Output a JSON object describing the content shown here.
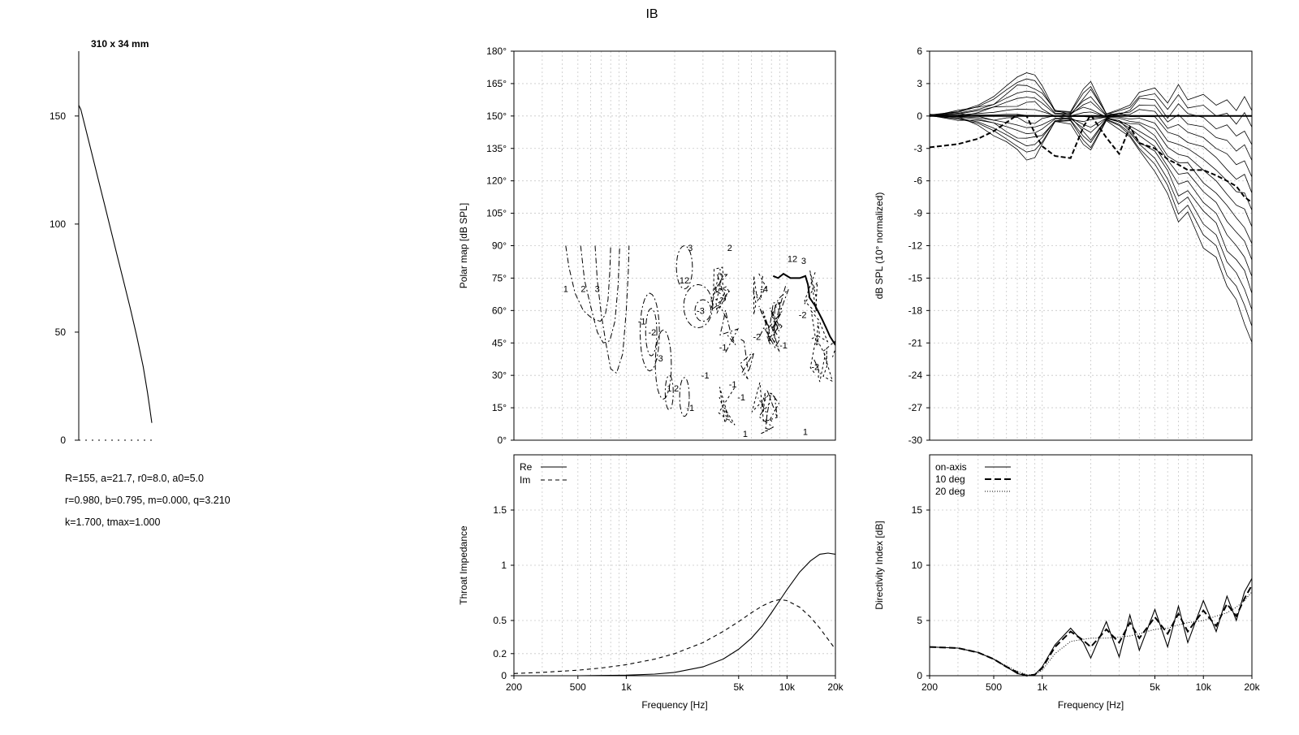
{
  "title": "IB",
  "profile": {
    "label": "310 x 34 mm",
    "yticks": [
      "0",
      "50",
      "100",
      "150"
    ],
    "params": [
      "R=155, a=21.7, r0=8.0, a0=5.0",
      "r=0.980, b=0.795, m=0.000, q=3.210",
      "k=1.700, tmax=1.000"
    ]
  },
  "chart_data": [
    {
      "type": "line",
      "id": "profile",
      "title": "310 x 34 mm",
      "ylim": [
        0,
        180
      ],
      "xlim": [
        0,
        34
      ],
      "series": [
        {
          "name": "profile",
          "x": [
            0,
            1,
            3,
            6,
            9,
            12,
            15,
            18,
            21,
            24,
            27,
            30,
            32,
            33,
            34
          ],
          "y": [
            155,
            153,
            145,
            133,
            121,
            109,
            97,
            85,
            73,
            61,
            48,
            34,
            22,
            15,
            8
          ]
        }
      ]
    },
    {
      "type": "contour",
      "id": "polar-map",
      "ylabel": "Polar map [dB SPL]",
      "ylim": [
        0,
        180
      ],
      "yticks": [
        "0°",
        "15°",
        "30°",
        "45°",
        "60°",
        "75°",
        "90°",
        "105°",
        "120°",
        "135°",
        "150°",
        "165°",
        "180°"
      ],
      "xticks": [
        "200",
        "500",
        "1k",
        "5k",
        "10k",
        "20k"
      ],
      "contour_labels": [
        {
          "text": "1",
          "f": 420,
          "deg": 70
        },
        {
          "text": "2",
          "f": 540,
          "deg": 70
        },
        {
          "text": "3",
          "f": 660,
          "deg": 70
        },
        {
          "text": "3",
          "f": 2500,
          "deg": 89
        },
        {
          "text": "12",
          "f": 2300,
          "deg": 74
        },
        {
          "text": "2",
          "f": 4400,
          "deg": 89
        },
        {
          "text": "-2",
          "f": 1450,
          "deg": 50
        },
        {
          "text": "-1",
          "f": 1250,
          "deg": 55
        },
        {
          "text": "-3",
          "f": 1600,
          "deg": 38
        },
        {
          "text": "-3",
          "f": 2900,
          "deg": 60
        },
        {
          "text": "-4",
          "f": 7200,
          "deg": 70
        },
        {
          "text": "-2",
          "f": 6500,
          "deg": 48
        },
        {
          "text": "-1",
          "f": 4000,
          "deg": 43
        },
        {
          "text": "-1",
          "f": 3100,
          "deg": 30
        },
        {
          "text": "-1",
          "f": 4600,
          "deg": 26
        },
        {
          "text": "-1",
          "f": 5200,
          "deg": 20
        },
        {
          "text": "-1",
          "f": 2500,
          "deg": 15
        },
        {
          "text": "1",
          "f": 1850,
          "deg": 24
        },
        {
          "text": "2",
          "f": 2050,
          "deg": 24
        },
        {
          "text": "-1",
          "f": 8800,
          "deg": 62
        },
        {
          "text": "-1",
          "f": 9500,
          "deg": 44
        },
        {
          "text": "-2",
          "f": 12500,
          "deg": 58
        },
        {
          "text": "-2",
          "f": 15000,
          "deg": 34
        },
        {
          "text": "12",
          "f": 10800,
          "deg": 84
        },
        {
          "text": "3",
          "f": 12700,
          "deg": 83
        },
        {
          "text": "1",
          "f": 13000,
          "deg": 4
        },
        {
          "text": "1",
          "f": 5500,
          "deg": 3
        }
      ]
    },
    {
      "type": "line",
      "id": "normalized-response",
      "ylabel": "dB SPL (10° normalized)",
      "ylim": [
        -30,
        6
      ],
      "yticks": [
        "6",
        "3",
        "0",
        "-3",
        "-6",
        "-9",
        "-12",
        "-15",
        "-18",
        "-21",
        "-24",
        "-27",
        "-30"
      ],
      "xticks": [
        "200",
        "500",
        "1k",
        "5k",
        "10k",
        "20k"
      ],
      "x": [
        200,
        300,
        400,
        500,
        600,
        700,
        800,
        900,
        1000,
        1200,
        1500,
        1800,
        2000,
        2500,
        3000,
        3500,
        4000,
        5000,
        6000,
        7000,
        8000,
        10000,
        12000,
        14000,
        16000,
        18000,
        20000
      ],
      "series": [
        {
          "name": "upper-envelope",
          "values": [
            0.1,
            0.4,
            1.0,
            1.8,
            2.8,
            3.6,
            4.0,
            3.8,
            2.8,
            0.5,
            0.4,
            2.5,
            3.2,
            0.2,
            0.6,
            1.0,
            2.2,
            2.6,
            1.2,
            2.9,
            1.5,
            2.0,
            1.0,
            1.5,
            0.5,
            1.8,
            0.5
          ]
        },
        {
          "name": "lower-envelope",
          "values": [
            0.0,
            -0.3,
            -0.8,
            -1.6,
            -2.5,
            -3.3,
            -3.9,
            -3.7,
            -2.8,
            -0.6,
            -0.5,
            -2.6,
            -3.4,
            -0.4,
            -1.0,
            -2.0,
            -3.4,
            -5.0,
            -7.0,
            -10.0,
            -9.0,
            -12.0,
            -13.0,
            -16.0,
            -17.0,
            -19.0,
            -21.0
          ]
        },
        {
          "name": "dashed",
          "values": [
            -2.9,
            -2.6,
            -2.1,
            -1.4,
            -0.6,
            0.1,
            0.0,
            -1.6,
            -2.8,
            -3.7,
            -3.9,
            -1.0,
            0.1,
            -2.0,
            -3.5,
            -1.0,
            -2.5,
            -3.0,
            -4.0,
            -4.5,
            -5.0,
            -5.0,
            -5.5,
            -6.0,
            -6.5,
            -7.5,
            -8.0
          ]
        }
      ]
    },
    {
      "type": "line",
      "id": "throat-impedance",
      "ylabel": "Throat Impedance",
      "ylim": [
        0,
        2.0
      ],
      "yticks": [
        "0",
        "0.2",
        "0.5",
        "1",
        "1.5"
      ],
      "xticks": [
        "200",
        "500",
        "1k",
        "5k",
        "10k",
        "20k"
      ],
      "legend": [
        "Re",
        "Im"
      ],
      "x": [
        200,
        300,
        500,
        700,
        1000,
        1500,
        2000,
        3000,
        4000,
        5000,
        6000,
        7000,
        8000,
        9000,
        10000,
        12000,
        14000,
        16000,
        18000,
        20000
      ],
      "series": [
        {
          "name": "Re",
          "values": [
            0.0,
            0.0,
            0.0,
            0.002,
            0.005,
            0.015,
            0.03,
            0.08,
            0.15,
            0.24,
            0.34,
            0.45,
            0.57,
            0.68,
            0.78,
            0.94,
            1.04,
            1.1,
            1.11,
            1.1
          ]
        },
        {
          "name": "Im",
          "values": [
            0.02,
            0.03,
            0.05,
            0.07,
            0.1,
            0.15,
            0.2,
            0.3,
            0.4,
            0.49,
            0.57,
            0.63,
            0.67,
            0.69,
            0.68,
            0.62,
            0.53,
            0.43,
            0.33,
            0.24
          ]
        }
      ]
    },
    {
      "type": "line",
      "id": "directivity-index",
      "ylabel": "Directivity Index [dB]",
      "ylim": [
        0,
        20
      ],
      "yticks": [
        "0",
        "5",
        "10",
        "15"
      ],
      "xticks": [
        "200",
        "500",
        "1k",
        "5k",
        "10k",
        "20k"
      ],
      "legend": [
        "on-axis",
        "10 deg",
        "20 deg"
      ],
      "x": [
        200,
        300,
        400,
        500,
        600,
        700,
        800,
        900,
        1000,
        1200,
        1500,
        1800,
        2000,
        2500,
        3000,
        3500,
        4000,
        5000,
        6000,
        7000,
        8000,
        10000,
        12000,
        14000,
        16000,
        18000,
        20000
      ],
      "series": [
        {
          "name": "on-axis",
          "values": [
            2.6,
            2.5,
            2.1,
            1.5,
            0.8,
            0.2,
            0.0,
            0.1,
            0.8,
            2.8,
            4.3,
            3.0,
            1.6,
            4.9,
            1.7,
            5.5,
            2.3,
            6.0,
            2.6,
            6.3,
            3.0,
            6.8,
            4.0,
            7.2,
            5.0,
            7.6,
            8.8
          ]
        },
        {
          "name": "10 deg",
          "values": [
            2.6,
            2.5,
            2.1,
            1.5,
            0.8,
            0.3,
            0.0,
            0.1,
            0.7,
            2.6,
            4.0,
            3.2,
            2.6,
            4.2,
            3.0,
            4.8,
            3.4,
            5.3,
            3.8,
            5.6,
            4.0,
            5.9,
            4.5,
            6.5,
            5.4,
            7.0,
            8.2
          ]
        },
        {
          "name": "20 deg",
          "values": [
            2.6,
            2.5,
            2.1,
            1.5,
            0.9,
            0.4,
            0.1,
            0.1,
            0.5,
            2.0,
            3.1,
            3.3,
            3.4,
            3.4,
            3.5,
            3.6,
            3.8,
            4.2,
            4.3,
            4.6,
            4.8,
            5.0,
            5.4,
            5.7,
            6.2,
            6.8,
            7.6
          ]
        }
      ]
    }
  ]
}
